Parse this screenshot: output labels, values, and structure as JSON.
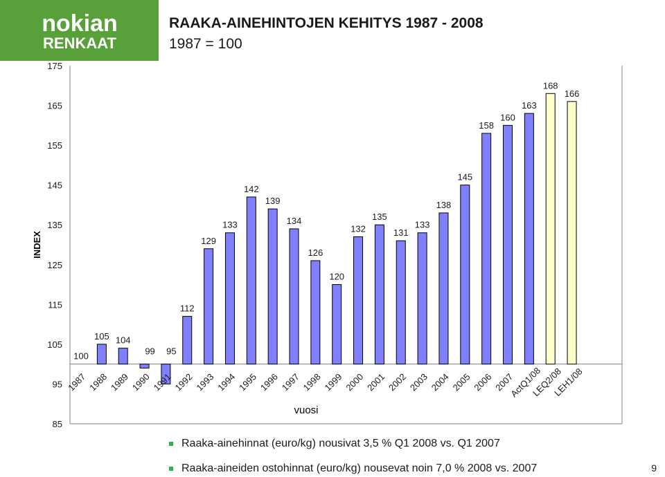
{
  "logo": {
    "line1": "nokian",
    "line2": "RENKAAT",
    "bg_color": "#57a03a"
  },
  "title": "RAAKA-AINEHINTOJEN KEHITYS 1987 - 2008",
  "subtitle": "1987 = 100",
  "chart_data": {
    "type": "bar",
    "categories": [
      "1987",
      "1988",
      "1989",
      "1990",
      "1991",
      "1992",
      "1993",
      "1994",
      "1995",
      "1996",
      "1997",
      "1998",
      "1999",
      "2000",
      "2001",
      "2002",
      "2003",
      "2004",
      "2005",
      "2006",
      "2007",
      "ActQ1/08",
      "LEQ2/08",
      "LEH1/08"
    ],
    "values": [
      100,
      105,
      104,
      99,
      95,
      112,
      129,
      133,
      142,
      139,
      134,
      126,
      120,
      132,
      135,
      131,
      133,
      138,
      145,
      158,
      160,
      163,
      168,
      166
    ],
    "data_labels": [
      "100",
      "105",
      "104",
      "99",
      "95",
      "112",
      "129",
      "133",
      "142",
      "139",
      "134",
      "126",
      "120",
      "132",
      "135",
      "131",
      "133",
      "138",
      "145",
      "158",
      "160",
      "163",
      "168",
      "166"
    ],
    "bar_baseline": 100,
    "ylim": [
      85,
      175
    ],
    "yticks": [
      85,
      95,
      105,
      115,
      125,
      135,
      145,
      155,
      165,
      175
    ],
    "ylabel": "INDEX",
    "xlabel": "vuosi",
    "grid": false,
    "colors": {
      "actual": "#8080ff",
      "forecast": "#ffffcc",
      "outline": "#000000"
    },
    "forecast_categories": [
      "LEQ2/08",
      "LEH1/08"
    ]
  },
  "bullets": [
    "Raaka-ainehinnat (euro/kg) nousivat 3,5 % Q1 2008 vs. Q1 2007",
    "Raaka-aineiden ostohinnat (euro/kg) nousevat noin 7,0 % 2008 vs. 2007"
  ],
  "page_number": "9"
}
